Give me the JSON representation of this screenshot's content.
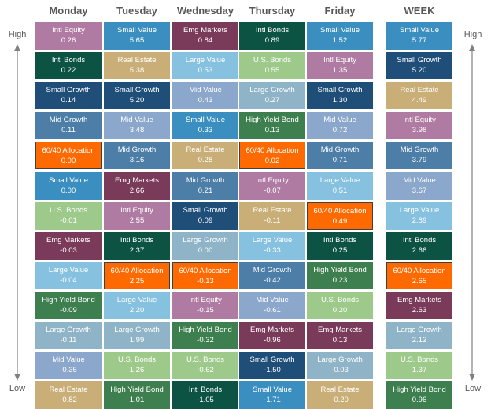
{
  "labels": {
    "high": "High",
    "low": "Low"
  },
  "columns": [
    {
      "day": "Monday",
      "cells": [
        {
          "name": "Intl Equity",
          "value": "0.26"
        },
        {
          "name": "Intl Bonds",
          "value": "0.22"
        },
        {
          "name": "Small Growth",
          "value": "0.14"
        },
        {
          "name": "Mid Growth",
          "value": "0.11"
        },
        {
          "name": "60/40 Allocation",
          "value": "0.00"
        },
        {
          "name": "Small Value",
          "value": "0.00"
        },
        {
          "name": "U.S. Bonds",
          "value": "-0.01"
        },
        {
          "name": "Emg Markets",
          "value": "-0.03"
        },
        {
          "name": "Large Value",
          "value": "-0.04"
        },
        {
          "name": "High Yield Bond",
          "value": "-0.09"
        },
        {
          "name": "Large Growth",
          "value": "-0.11"
        },
        {
          "name": "Mid Value",
          "value": "-0.35"
        },
        {
          "name": "Real Estate",
          "value": "-0.82"
        }
      ]
    },
    {
      "day": "Tuesday",
      "cells": [
        {
          "name": "Small Value",
          "value": "5.65"
        },
        {
          "name": "Real Estate",
          "value": "5.38"
        },
        {
          "name": "Small Growth",
          "value": "5.20"
        },
        {
          "name": "Mid Value",
          "value": "3.48"
        },
        {
          "name": "Mid Growth",
          "value": "3.16"
        },
        {
          "name": "Emg Markets",
          "value": "2.66"
        },
        {
          "name": "Intl Equity",
          "value": "2.55"
        },
        {
          "name": "Intl Bonds",
          "value": "2.37"
        },
        {
          "name": "60/40 Allocation",
          "value": "2.25"
        },
        {
          "name": "Large Value",
          "value": "2.20"
        },
        {
          "name": "Large Growth",
          "value": "1.99"
        },
        {
          "name": "U.S. Bonds",
          "value": "1.26"
        },
        {
          "name": "High Yield Bond",
          "value": "1.01"
        }
      ]
    },
    {
      "day": "Wednesday",
      "cells": [
        {
          "name": "Emg Markets",
          "value": "0.84"
        },
        {
          "name": "Large Value",
          "value": "0.53"
        },
        {
          "name": "Mid Value",
          "value": "0.43"
        },
        {
          "name": "Small Value",
          "value": "0.33"
        },
        {
          "name": "Real Estate",
          "value": "0.28"
        },
        {
          "name": "Mid Growth",
          "value": "0.21"
        },
        {
          "name": "Small Growth",
          "value": "0.09"
        },
        {
          "name": "Large Growth",
          "value": "0.00"
        },
        {
          "name": "60/40 Allocation",
          "value": "-0.13"
        },
        {
          "name": "Intl Equity",
          "value": "-0.15"
        },
        {
          "name": "High Yield Bond",
          "value": "-0.32"
        },
        {
          "name": "U.S. Bonds",
          "value": "-0.62"
        },
        {
          "name": "Intl Bonds",
          "value": "-1.05"
        }
      ]
    },
    {
      "day": "Thursday",
      "cells": [
        {
          "name": "Intl Bonds",
          "value": "0.89"
        },
        {
          "name": "U.S. Bonds",
          "value": "0.55"
        },
        {
          "name": "Large Growth",
          "value": "0.27"
        },
        {
          "name": "High Yield Bond",
          "value": "0.13"
        },
        {
          "name": "60/40 Allocation",
          "value": "0.02"
        },
        {
          "name": "Intl Equity",
          "value": "-0.07"
        },
        {
          "name": "Real Estate",
          "value": "-0.11"
        },
        {
          "name": "Large Value",
          "value": "-0.33"
        },
        {
          "name": "Mid Growth",
          "value": "-0.42"
        },
        {
          "name": "Mid Value",
          "value": "-0.61"
        },
        {
          "name": "Emg Markets",
          "value": "-0.96"
        },
        {
          "name": "Small Growth",
          "value": "-1.50"
        },
        {
          "name": "Small Value",
          "value": "-1.71"
        }
      ]
    },
    {
      "day": "Friday",
      "cells": [
        {
          "name": "Small Value",
          "value": "1.52"
        },
        {
          "name": "Intl Equity",
          "value": "1.35"
        },
        {
          "name": "Small Growth",
          "value": "1.30"
        },
        {
          "name": "Mid Value",
          "value": "0.72"
        },
        {
          "name": "Mid Growth",
          "value": "0.71"
        },
        {
          "name": "Large Value",
          "value": "0.51"
        },
        {
          "name": "60/40 Allocation",
          "value": "0.49"
        },
        {
          "name": "Intl Bonds",
          "value": "0.25"
        },
        {
          "name": "High Yield Bond",
          "value": "0.23"
        },
        {
          "name": "U.S. Bonds",
          "value": "0.20"
        },
        {
          "name": "Emg Markets",
          "value": "0.13"
        },
        {
          "name": "Large Growth",
          "value": "-0.03"
        },
        {
          "name": "Real Estate",
          "value": "-0.20"
        }
      ]
    },
    {
      "day": "WEEK",
      "cells": [
        {
          "name": "Small Value",
          "value": "5.77"
        },
        {
          "name": "Small Growth",
          "value": "5.20"
        },
        {
          "name": "Real Estate",
          "value": "4.49"
        },
        {
          "name": "Intl Equity",
          "value": "3.98"
        },
        {
          "name": "Mid Growth",
          "value": "3.79"
        },
        {
          "name": "Mid Value",
          "value": "3.67"
        },
        {
          "name": "Large Value",
          "value": "2.89"
        },
        {
          "name": "Intl Bonds",
          "value": "2.66"
        },
        {
          "name": "60/40 Allocation",
          "value": "2.65"
        },
        {
          "name": "Emg Markets",
          "value": "2.63"
        },
        {
          "name": "Large Growth",
          "value": "2.12"
        },
        {
          "name": "U.S. Bonds",
          "value": "1.37"
        },
        {
          "name": "High Yield Bond",
          "value": "0.96"
        }
      ]
    }
  ],
  "colors": {
    "Small Value": "#3b8fc0",
    "Small Growth": "#1f4e79",
    "Real Estate": "#c9ae77",
    "Intl Equity": "#b07ba3",
    "Mid Growth": "#4d7ea8",
    "Mid Value": "#8ba7cc",
    "Large Value": "#86c1e0",
    "Intl Bonds": "#0d5343",
    "60/40 Allocation": "#ff6a00",
    "Emg Markets": "#7a3b5a",
    "Large Growth": "#8fb3c7",
    "U.S. Bonds": "#9dc98a",
    "High Yield Bond": "#3e7f4f"
  },
  "chart_data": {
    "type": "table",
    "title": "",
    "columns": [
      "Monday",
      "Tuesday",
      "Wednesday",
      "Thursday",
      "Friday",
      "WEEK"
    ],
    "order": "ranked High to Low",
    "highlight": "60/40 Allocation"
  }
}
